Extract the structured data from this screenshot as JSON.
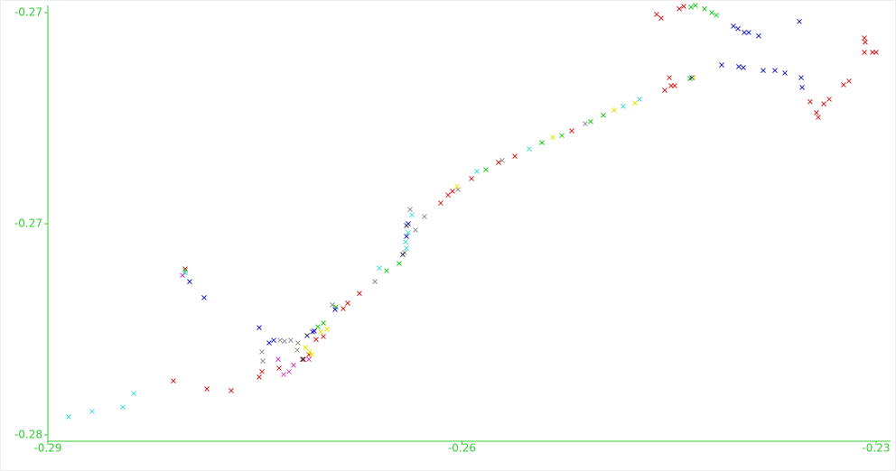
{
  "chart_data": {
    "type": "scatter",
    "xlim": [
      -0.29,
      -0.23
    ],
    "xticks": [
      -0.29,
      -0.26,
      -0.23
    ],
    "ylim": [
      -0.275,
      -0.265
    ],
    "yticks": [
      {
        "value": -0.275,
        "label": "-0.28"
      },
      -0.27,
      {
        "value": -0.265,
        "label": "-0.27"
      }
    ],
    "grid": false,
    "axis_color": "#33cc33",
    "series": [
      {
        "color": "#d62020",
        "x": [
          -0.2459,
          -0.24557,
          -0.24426,
          -0.24394,
          -0.24498,
          -0.24531,
          -0.24485,
          -0.24459,
          -0.23085,
          -0.23079,
          -0.23085,
          -0.23026,
          -0.23,
          -0.23478,
          -0.23432,
          -0.23419,
          -0.23379,
          -0.2334,
          -0.23236,
          -0.23196,
          -0.26154,
          -0.26101,
          -0.26069,
          -0.25931,
          -0.25735,
          -0.25617,
          -0.25205,
          -0.28091,
          -0.27848,
          -0.27672,
          -0.28005,
          -0.26743,
          -0.26828,
          -0.2686,
          -0.27004,
          -0.27057,
          -0.27449,
          -0.27469,
          -0.27325,
          -0.27148,
          -0.27109
        ],
        "values": [
          -0.26504,
          -0.26513,
          -0.26491,
          -0.26485,
          -0.26654,
          -0.26684,
          -0.26673,
          -0.26673,
          -0.2656,
          -0.2657,
          -0.26594,
          -0.26594,
          -0.26594,
          -0.26711,
          -0.26737,
          -0.26748,
          -0.26716,
          -0.26705,
          -0.26671,
          -0.26662,
          -0.26951,
          -0.26932,
          -0.26923,
          -0.26893,
          -0.26855,
          -0.2684,
          -0.2678,
          -0.27372,
          -0.27391,
          -0.27395,
          -0.27107,
          -0.27165,
          -0.27188,
          -0.27201,
          -0.27267,
          -0.27274,
          -0.2735,
          -0.27363,
          -0.27342,
          -0.27321,
          -0.2731
        ]
      },
      {
        "color": "#22cc22",
        "x": [
          -0.24341,
          -0.24309,
          -0.24243,
          -0.24191,
          -0.24158,
          -0.25068,
          -0.24976,
          -0.25277,
          -0.25421,
          -0.25827,
          -0.26455,
          -0.26546,
          -0.26913,
          -0.27004,
          -0.27044,
          -0.28005,
          -0.24348
        ],
        "values": [
          -0.26487,
          -0.26483,
          -0.26491,
          -0.265,
          -0.26506,
          -0.26758,
          -0.26743,
          -0.26791,
          -0.26808,
          -0.26872,
          -0.27094,
          -0.27111,
          -0.27197,
          -0.27235,
          -0.27244,
          -0.27111,
          -0.26656
        ]
      },
      {
        "color": "#2222bb",
        "x": [
          -0.24034,
          -0.24001,
          -0.23955,
          -0.23923,
          -0.23851,
          -0.23556,
          -0.24119,
          -0.23995,
          -0.23962,
          -0.23818,
          -0.23733,
          -0.23661,
          -0.23543,
          -0.23536,
          -0.24335,
          -0.26389,
          -0.26402,
          -0.26919,
          -0.2707,
          -0.27083,
          -0.27364,
          -0.27397,
          -0.27469,
          -0.27868,
          -0.27973
        ],
        "values": [
          -0.26532,
          -0.26538,
          -0.26547,
          -0.26547,
          -0.26555,
          -0.26521,
          -0.26624,
          -0.26628,
          -0.2663,
          -0.26637,
          -0.26637,
          -0.26643,
          -0.26654,
          -0.26677,
          -0.26654,
          -0.27,
          -0.2703,
          -0.27203,
          -0.27254,
          -0.27256,
          -0.27276,
          -0.27282,
          -0.27246,
          -0.27175,
          -0.27137
        ]
      },
      {
        "color": "#44dddd",
        "x": [
          -0.2885,
          -0.28679,
          -0.28457,
          -0.28378,
          -0.26402,
          -0.26409,
          -0.26389,
          -0.26363,
          -0.26599,
          -0.25892,
          -0.25513,
          -0.24714,
          -0.24832,
          -0.28005
        ],
        "values": [
          -0.27457,
          -0.27444,
          -0.27434,
          -0.27402,
          -0.27058,
          -0.27043,
          -0.27021,
          -0.26979,
          -0.27105,
          -0.26876,
          -0.26823,
          -0.26705,
          -0.26722,
          -0.27117
        ]
      },
      {
        "color": "#909090",
        "x": [
          -0.26376,
          -0.26272,
          -0.26337,
          -0.26416,
          -0.26631,
          -0.27318,
          -0.27286,
          -0.2724,
          -0.27443,
          -0.27449,
          -0.27194,
          -0.27188,
          -0.26939,
          -0.26029,
          -0.25709,
          -0.25107
        ],
        "values": [
          -0.26966,
          -0.26983,
          -0.27015,
          -0.27068,
          -0.27137,
          -0.27276,
          -0.27278,
          -0.27276,
          -0.27325,
          -0.27303,
          -0.27299,
          -0.27282,
          -0.27192,
          -0.26919,
          -0.2685,
          -0.26763
        ]
      },
      {
        "color": "#e6e600",
        "x": [
          -0.27135,
          -0.27103,
          -0.27089,
          -0.27024,
          -0.26978,
          -0.26036,
          -0.25342,
          -0.24898,
          -0.24747,
          -0.24322
        ],
        "values": [
          -0.27293,
          -0.27303,
          -0.2731,
          -0.27256,
          -0.2725,
          -0.26912,
          -0.26795,
          -0.26731,
          -0.26714,
          -0.26654
        ]
      },
      {
        "color": "#cc44cc",
        "x": [
          -0.27292,
          -0.27253,
          -0.2722,
          -0.27332,
          -0.28025,
          -0.27109
        ],
        "values": [
          -0.27357,
          -0.2735,
          -0.27335,
          -0.27321,
          -0.27122,
          -0.27321
        ]
      },
      {
        "color": "#333355",
        "x": [
          -0.26402,
          -0.26429,
          -0.27155,
          -0.27122
        ],
        "values": [
          -0.27004,
          -0.27073,
          -0.27321,
          -0.27265
        ]
      }
    ]
  }
}
